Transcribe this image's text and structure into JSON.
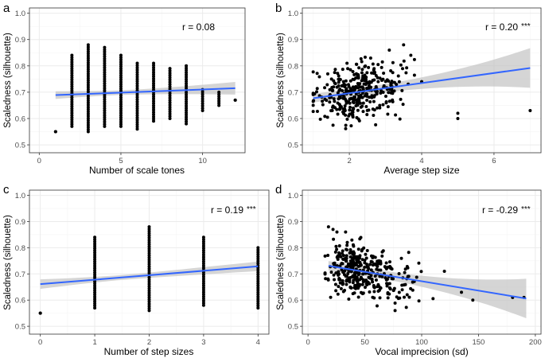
{
  "figure": {
    "description": "Four scatter plots of scaledness vs musical features"
  },
  "style": {
    "point_color": "#000000",
    "line_color": "#3366FF",
    "band_color": "#BEBEBE",
    "grid_major": "#EBEBEB",
    "grid_minor": "#F5F5F5",
    "panel_border": "#333333",
    "text_color": "#4D4D4D"
  },
  "chart_data": [
    {
      "panel": "a",
      "type": "scatter",
      "xlabel": "Number of scale tones",
      "ylabel": "Scaledness (silhouette)",
      "xlim": [
        -0.6,
        12.6
      ],
      "ylim": [
        0.47,
        1.02
      ],
      "xticks": [
        0,
        5,
        10
      ],
      "xtick_labels": [
        "0",
        "5",
        "10"
      ],
      "yticks": [
        0.5,
        0.6,
        0.7,
        0.8,
        0.9,
        1.0
      ],
      "ytick_labels": [
        "0.5",
        "0.6",
        "0.7",
        "0.8",
        "0.9",
        "1.0"
      ],
      "r_label": "r =  0.08",
      "sig": "",
      "fit": {
        "x0": 1,
        "y0": 0.689,
        "x1": 12,
        "y1": 0.715,
        "ci0": 0.016,
        "ci1": 0.016
      },
      "columns": [
        {
          "x": 1,
          "ymin": 0.55,
          "ymax": 0.55
        },
        {
          "x": 2,
          "ymin": 0.57,
          "ymax": 0.84
        },
        {
          "x": 3,
          "ymin": 0.55,
          "ymax": 0.88
        },
        {
          "x": 4,
          "ymin": 0.57,
          "ymax": 0.87
        },
        {
          "x": 5,
          "ymin": 0.57,
          "ymax": 0.84
        },
        {
          "x": 6,
          "ymin": 0.56,
          "ymax": 0.81
        },
        {
          "x": 7,
          "ymin": 0.59,
          "ymax": 0.81
        },
        {
          "x": 8,
          "ymin": 0.6,
          "ymax": 0.79
        },
        {
          "x": 9,
          "ymin": 0.58,
          "ymax": 0.8
        },
        {
          "x": 10,
          "ymin": 0.63,
          "ymax": 0.71
        },
        {
          "x": 11,
          "ymin": 0.65,
          "ymax": 0.7
        },
        {
          "x": 12,
          "ymin": 0.67,
          "ymax": 0.67
        }
      ]
    },
    {
      "panel": "b",
      "type": "scatter",
      "xlabel": "Average step size",
      "ylabel": "Scaledness (silhouette)",
      "xlim": [
        0.7,
        7.3
      ],
      "ylim": [
        0.47,
        1.02
      ],
      "xticks": [
        2,
        4,
        6
      ],
      "xtick_labels": [
        "2",
        "4",
        "6"
      ],
      "yticks": [
        0.5,
        0.6,
        0.7,
        0.8,
        0.9,
        1.0
      ],
      "ytick_labels": [
        "0.5",
        "0.6",
        "0.7",
        "0.8",
        "0.9",
        "1.0"
      ],
      "r_label": "r =  0.20",
      "sig": "***",
      "fit": {
        "x0": 1,
        "y0": 0.677,
        "x1": 7,
        "y1": 0.792,
        "ci0": 0.018,
        "ci1": 0.05
      },
      "cloud": {
        "n": 360,
        "xmin": 1.0,
        "xmax": 3.8,
        "xmode": 2.3,
        "slope": 0.019,
        "intercept": 0.657,
        "sd": 0.055
      },
      "extra_points": [
        [
          4.0,
          0.74
        ],
        [
          5.0,
          0.62
        ],
        [
          5.0,
          0.6
        ],
        [
          7.0,
          0.63
        ],
        [
          3.5,
          0.88
        ],
        [
          3.7,
          0.84
        ]
      ]
    },
    {
      "panel": "c",
      "type": "scatter",
      "xlabel": "Number of step sizes",
      "ylabel": "Scaledness (silhouette)",
      "xlim": [
        -0.2,
        4.2
      ],
      "ylim": [
        0.47,
        1.02
      ],
      "xticks": [
        0,
        1,
        2,
        3,
        4
      ],
      "xtick_labels": [
        "0",
        "1",
        "2",
        "3",
        "4"
      ],
      "yticks": [
        0.5,
        0.6,
        0.7,
        0.8,
        0.9,
        1.0
      ],
      "ytick_labels": [
        "0.5",
        "0.6",
        "0.7",
        "0.8",
        "0.9",
        "1.0"
      ],
      "r_label": "r =  0.19",
      "sig": "***",
      "fit": {
        "x0": 0,
        "y0": 0.661,
        "x1": 4,
        "y1": 0.729,
        "ci0": 0.02,
        "ci1": 0.012
      },
      "columns": [
        {
          "x": 0,
          "ymin": 0.55,
          "ymax": 0.55
        },
        {
          "x": 1,
          "ymin": 0.57,
          "ymax": 0.84
        },
        {
          "x": 2,
          "ymin": 0.56,
          "ymax": 0.88
        },
        {
          "x": 3,
          "ymin": 0.58,
          "ymax": 0.84
        },
        {
          "x": 4,
          "ymin": 0.57,
          "ymax": 0.8
        }
      ]
    },
    {
      "panel": "d",
      "type": "scatter",
      "xlabel": "Vocal imprecision (sd)",
      "ylabel": "Scaledness (silhouette)",
      "xlim": [
        -5,
        205
      ],
      "ylim": [
        0.47,
        1.02
      ],
      "xticks": [
        0,
        50,
        100,
        150,
        200
      ],
      "xtick_labels": [
        "0",
        "50",
        "100",
        "150",
        "200"
      ],
      "yticks": [
        0.5,
        0.6,
        0.7,
        0.8,
        0.9,
        1.0
      ],
      "ytick_labels": [
        "0.5",
        "0.6",
        "0.7",
        "0.8",
        "0.9",
        "1.0"
      ],
      "r_label": "r =  -0.29",
      "sig": "***",
      "fit": {
        "x0": 18,
        "y0": 0.731,
        "x1": 192,
        "y1": 0.606,
        "ci0": 0.02,
        "ci1": 0.05
      },
      "cloud": {
        "n": 360,
        "xmin": 15,
        "xmax": 110,
        "xmode": 45,
        "slope": -0.00072,
        "intercept": 0.744,
        "sd": 0.05
      },
      "extra_points": [
        [
          120,
          0.71
        ],
        [
          135,
          0.63
        ],
        [
          145,
          0.6
        ],
        [
          180,
          0.61
        ],
        [
          190,
          0.61
        ],
        [
          18,
          0.88
        ],
        [
          22,
          0.87
        ]
      ]
    }
  ]
}
